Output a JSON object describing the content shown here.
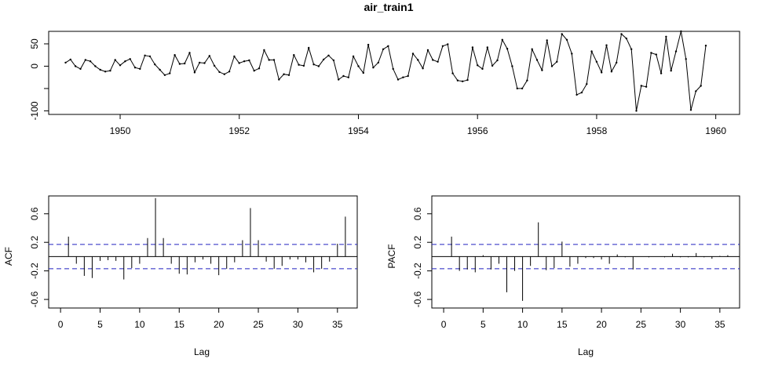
{
  "chart_data": [
    {
      "type": "line",
      "title": "air_train1",
      "xlabel": "",
      "ylabel": "",
      "xlim": [
        1948.8,
        1960.4
      ],
      "ylim": [
        -108,
        78
      ],
      "x_ticks": [
        1950,
        1952,
        1954,
        1956,
        1958,
        1960
      ],
      "x_tick_labels": [
        "1950",
        "1952",
        "1954",
        "1956",
        "1958",
        "1960"
      ],
      "y_ticks": [
        -100,
        -50,
        0,
        50
      ],
      "y_tick_labels": [
        "-100",
        "",
        "0",
        "50"
      ],
      "x_start": 1949.0833,
      "x_step": 0.08333,
      "values": [
        8,
        15,
        0,
        -6,
        14,
        11,
        0,
        -8,
        -12,
        -10,
        14,
        2,
        11,
        16,
        -3,
        -6,
        24,
        22,
        4,
        -8,
        -20,
        -16,
        25,
        5,
        6,
        30,
        -14,
        8,
        7,
        23,
        1,
        -13,
        -18,
        -12,
        22,
        7,
        11,
        13,
        -10,
        -5,
        36,
        14,
        14,
        -30,
        -18,
        -20,
        25,
        3,
        1,
        41,
        4,
        0,
        15,
        24,
        13,
        -30,
        -22,
        -25,
        22,
        0,
        -15,
        48,
        -3,
        8,
        38,
        45,
        -6,
        -30,
        -25,
        -22,
        28,
        14,
        -5,
        36,
        14,
        10,
        45,
        49,
        -16,
        -32,
        -34,
        -31,
        42,
        2,
        -6,
        42,
        1,
        13,
        59,
        39,
        0,
        -50,
        -50,
        -32,
        38,
        14,
        -9,
        58,
        0,
        10,
        72,
        59,
        28,
        -64,
        -59,
        -40,
        33,
        10,
        -14,
        47,
        -12,
        8,
        72,
        62,
        38,
        -100,
        -44,
        -46,
        30,
        26,
        -16,
        66,
        -10,
        33,
        78,
        16,
        -98,
        -56,
        -44,
        46
      ]
    },
    {
      "type": "bar",
      "title": "",
      "xlabel": "Lag",
      "ylabel": "ACF",
      "xlim": [
        -1.5,
        37.5
      ],
      "ylim": [
        -0.72,
        0.85
      ],
      "x_ticks": [
        0,
        5,
        10,
        15,
        20,
        25,
        30,
        35
      ],
      "x_tick_labels": [
        "0",
        "5",
        "10",
        "15",
        "20",
        "25",
        "30",
        "35"
      ],
      "y_ticks": [
        -0.6,
        -0.2,
        0.2,
        0.6
      ],
      "y_tick_labels": [
        "-0.6",
        "-0.2",
        "0.2",
        "0.6"
      ],
      "confidence_band": 0.17,
      "lags": [
        1,
        2,
        3,
        4,
        5,
        6,
        7,
        8,
        9,
        10,
        11,
        12,
        13,
        14,
        15,
        16,
        17,
        18,
        19,
        20,
        21,
        22,
        23,
        24,
        25,
        26,
        27,
        28,
        29,
        30,
        31,
        32,
        33,
        34,
        35,
        36
      ],
      "values": [
        0.28,
        -0.1,
        -0.27,
        -0.3,
        -0.06,
        -0.05,
        -0.06,
        -0.32,
        -0.16,
        -0.1,
        0.26,
        0.82,
        0.26,
        -0.1,
        -0.24,
        -0.25,
        -0.08,
        -0.04,
        -0.1,
        -0.26,
        -0.17,
        -0.08,
        0.23,
        0.68,
        0.23,
        -0.07,
        -0.17,
        -0.13,
        -0.04,
        -0.04,
        -0.08,
        -0.22,
        -0.17,
        -0.07,
        0.18,
        0.56
      ]
    },
    {
      "type": "bar",
      "title": "",
      "xlabel": "Lag",
      "ylabel": "PACF",
      "xlim": [
        -1.5,
        37.5
      ],
      "ylim": [
        -0.72,
        0.85
      ],
      "x_ticks": [
        0,
        5,
        10,
        15,
        20,
        25,
        30,
        35
      ],
      "x_tick_labels": [
        "0",
        "5",
        "10",
        "15",
        "20",
        "25",
        "30",
        "35"
      ],
      "y_ticks": [
        -0.6,
        -0.2,
        0.2,
        0.6
      ],
      "y_tick_labels": [
        "-0.6",
        "-0.2",
        "0.2",
        "0.6"
      ],
      "confidence_band": 0.17,
      "lags": [
        1,
        2,
        3,
        4,
        5,
        6,
        7,
        8,
        9,
        10,
        11,
        12,
        13,
        14,
        15,
        16,
        17,
        18,
        19,
        20,
        21,
        22,
        23,
        24,
        25,
        26,
        27,
        28,
        29,
        30,
        31,
        32,
        33,
        34,
        35,
        36
      ],
      "values": [
        0.28,
        -0.2,
        -0.18,
        -0.22,
        0.02,
        -0.18,
        -0.1,
        -0.5,
        -0.2,
        -0.62,
        -0.13,
        0.48,
        -0.19,
        -0.16,
        0.21,
        -0.14,
        -0.1,
        -0.02,
        -0.02,
        -0.04,
        -0.1,
        0.03,
        -0.01,
        -0.18,
        0.0,
        -0.01,
        0.0,
        -0.01,
        0.04,
        -0.01,
        -0.01,
        0.05,
        -0.01,
        -0.03,
        0.01,
        0.02
      ]
    }
  ],
  "colors": {
    "series": "#000000",
    "confidence": "#2020c0",
    "axis": "#000000"
  }
}
